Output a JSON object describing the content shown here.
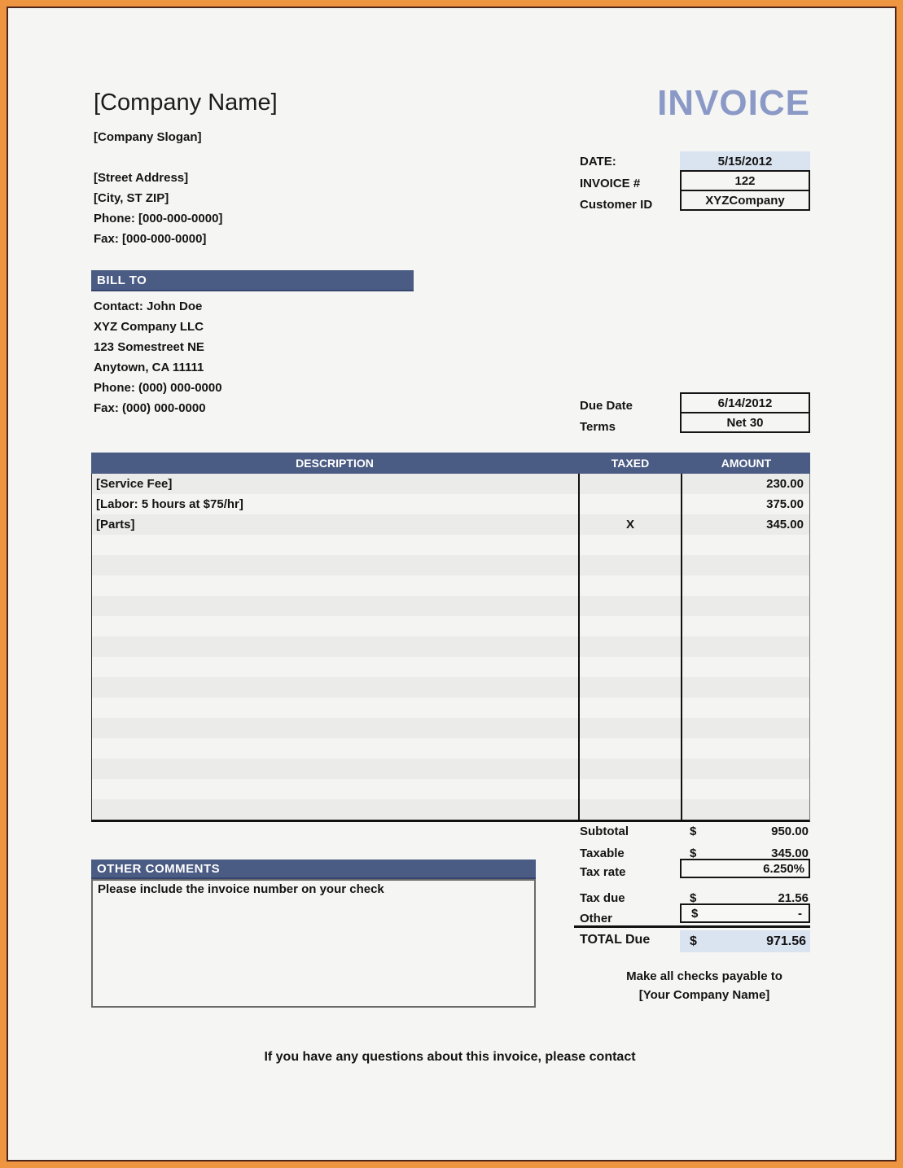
{
  "colors": {
    "frame_orange": "#EE9541",
    "frame_inner_line": "#4E241C",
    "page_bg": "#F5F5F3",
    "section_bar_blue": "#4A5B84",
    "invoice_title_blue": "#8B99C7",
    "shaded_cell_blue": "#DAE3F0",
    "row_stripe_dark": "#EBEBEA",
    "row_stripe_light": "#F4F4F2"
  },
  "header": {
    "company_name": "[Company Name]",
    "company_slogan": "[Company Slogan]",
    "street_address": "[Street Address]",
    "city_st_zip": "[City, ST  ZIP]",
    "phone_line": "Phone: [000-000-0000]",
    "fax_line": "Fax: [000-000-0000]",
    "invoice_title": "INVOICE"
  },
  "invoice_meta": {
    "date_label": "DATE:",
    "date_value": "5/15/2012",
    "invoice_no_label": "INVOICE #",
    "invoice_no_value": "122",
    "customer_id_label": "Customer ID",
    "customer_id_value": "XYZCompany"
  },
  "bill_to": {
    "title": "BILL TO",
    "lines": [
      "Contact: John Doe",
      "XYZ Company LLC",
      "123 Somestreet NE",
      "Anytown,  CA 11111",
      "Phone: (000) 000-0000",
      "Fax: (000) 000-0000"
    ]
  },
  "due_info": {
    "due_date_label": "Due Date",
    "due_date_value": "6/14/2012",
    "terms_label": "Terms",
    "terms_value": "Net 30"
  },
  "table": {
    "headers": {
      "description": "DESCRIPTION",
      "taxed": "TAXED",
      "amount": "AMOUNT"
    },
    "rows": [
      {
        "description": "[Service Fee]",
        "taxed": "",
        "amount": "230.00"
      },
      {
        "description": "[Labor: 5 hours at $75/hr]",
        "taxed": "",
        "amount": "375.00"
      },
      {
        "description": "[Parts]",
        "taxed": "X",
        "amount": "345.00"
      }
    ],
    "empty_row_count": 14
  },
  "summary": {
    "currency": "$",
    "subtotal_label": "Subtotal",
    "subtotal_value": "950.00",
    "taxable_label": "Taxable",
    "taxable_value": "345.00",
    "tax_rate_label": "Tax rate",
    "tax_rate_value": "6.250%",
    "tax_due_label": "Tax due",
    "tax_due_value": "21.56",
    "other_label": "Other",
    "other_value": "-",
    "total_label": "TOTAL Due",
    "total_value": "971.56"
  },
  "comments": {
    "title": "OTHER COMMENTS",
    "body": "Please include the invoice number on your check"
  },
  "payable": {
    "line1": "Make all checks payable to",
    "line2": "[Your Company Name]"
  },
  "footer": {
    "contact_line": "If you have any questions about this invoice, please contact"
  }
}
